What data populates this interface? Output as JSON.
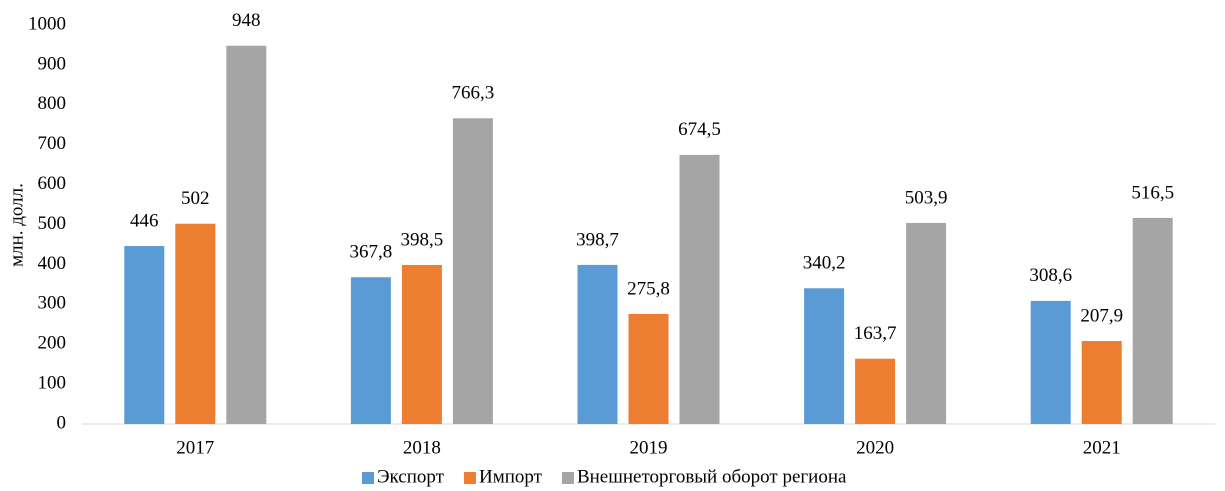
{
  "chart_data": {
    "type": "bar",
    "y_label": "млн. долл.",
    "categories": [
      "2017",
      "2018",
      "2019",
      "2020",
      "2021"
    ],
    "series": [
      {
        "name": "Экспорт",
        "color": "#5b9bd5",
        "values": [
          446,
          367.8,
          398.7,
          340.2,
          308.6
        ],
        "value_labels": [
          "446",
          "367,8",
          "398,7",
          "340,2",
          "308,6"
        ]
      },
      {
        "name": "Импорт",
        "color": "#ed7d31",
        "values": [
          502,
          398.5,
          275.8,
          163.7,
          207.9
        ],
        "value_labels": [
          "502",
          "398,5",
          "275,8",
          "163,7",
          "207,9"
        ]
      },
      {
        "name": "Внешнеторговый оборот региона",
        "color": "#a5a5a5",
        "values": [
          948,
          766.3,
          674.5,
          503.9,
          516.5
        ],
        "value_labels": [
          "948",
          "766,3",
          "674,5",
          "503,9",
          "516,5"
        ]
      }
    ],
    "ylim": [
      0,
      1000
    ],
    "yticks": [
      0,
      100,
      200,
      300,
      400,
      500,
      600,
      700,
      800,
      900,
      1000
    ],
    "grid": false,
    "legend": "bottom"
  }
}
